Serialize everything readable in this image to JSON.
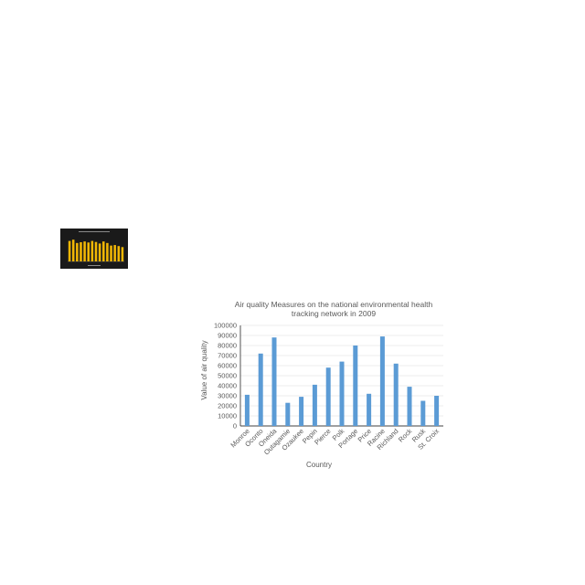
{
  "thumbnail": {
    "icon": "chart-thumbnail",
    "bar_color": "#f2b705",
    "background": "#1a1a1a"
  },
  "chart_data": {
    "type": "bar",
    "title_line1": "Air quality  Measures on the national environmental health",
    "title_line2": "tracking network in 2009",
    "xlabel": "Country",
    "ylabel": "Value  of  air quality",
    "categories": [
      "Monroe",
      "Oconto",
      "Oneida",
      "Outagamie",
      "Ozaukee",
      "Pepin",
      "Pierce",
      "Polk",
      "Portage",
      "Price",
      "Racine",
      "Richland",
      "Rock",
      "Rusk",
      "St. Croix"
    ],
    "values": [
      31000,
      72000,
      88000,
      23000,
      29000,
      41000,
      58000,
      64000,
      80000,
      32000,
      89000,
      62000,
      39000,
      25000,
      30000
    ],
    "ylim": [
      0,
      100000
    ],
    "yticks": [
      0,
      10000,
      20000,
      30000,
      40000,
      50000,
      60000,
      70000,
      80000,
      90000,
      100000
    ],
    "grid": true,
    "bar_color": "#5b9bd5"
  }
}
